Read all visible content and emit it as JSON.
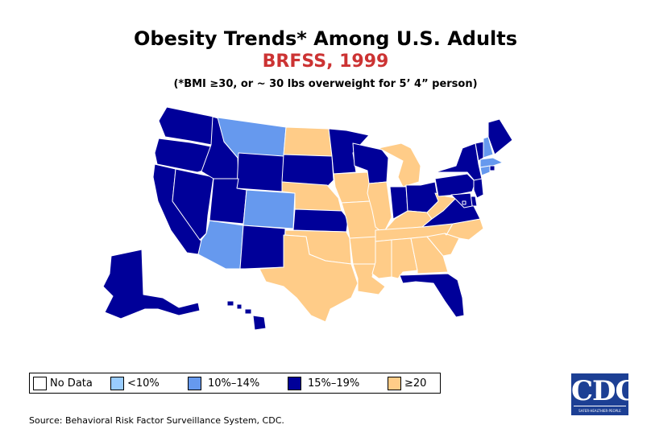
{
  "title": "Obesity Trends* Among U.S. Adults",
  "subtitle": "BRFSS, 1999",
  "note": "(*BMI ≥30, or ~ 30 lbs overweight for 5’ 4” person)",
  "colors": {
    "title": "#000000",
    "subtitle": "#cc3333",
    "no_data": "#ffffff",
    "lt10": "#99ccff",
    "b10_14": "#6699ee",
    "b15_19": "#000099",
    "ge20": "#ffcc88",
    "border": "#ffffff"
  },
  "legend": [
    {
      "label": "No Data",
      "category": "no_data"
    },
    {
      "label": "<10%",
      "category": "lt10"
    },
    {
      "label": "10%–14%",
      "category": "b10_14"
    },
    {
      "label": "15%–19%",
      "category": "b15_19"
    },
    {
      "label": "≥20",
      "category": "ge20"
    }
  ],
  "states": {
    "WA": "b15_19",
    "OR": "b15_19",
    "CA": "b15_19",
    "NV": "b15_19",
    "ID": "b15_19",
    "MT": "b10_14",
    "WY": "b15_19",
    "UT": "b15_19",
    "AZ": "b10_14",
    "CO": "b10_14",
    "NM": "b15_19",
    "ND": "ge20",
    "SD": "b15_19",
    "NE": "ge20",
    "KS": "b15_19",
    "OK": "ge20",
    "TX": "ge20",
    "MN": "b15_19",
    "IA": "ge20",
    "MO": "ge20",
    "AR": "ge20",
    "LA": "ge20",
    "WI": "b15_19",
    "IL": "ge20",
    "MI": "ge20",
    "IN": "b15_19",
    "OH": "b15_19",
    "KY": "ge20",
    "TN": "ge20",
    "MS": "ge20",
    "AL": "ge20",
    "GA": "ge20",
    "FL": "b15_19",
    "SC": "ge20",
    "NC": "ge20",
    "VA": "b15_19",
    "WV": "ge20",
    "PA": "b15_19",
    "NY": "b15_19",
    "VT": "b15_19",
    "NH": "b10_14",
    "ME": "b15_19",
    "MA": "b10_14",
    "RI": "b15_19",
    "CT": "b10_14",
    "NJ": "b15_19",
    "DE": "b15_19",
    "MD": "b15_19",
    "DC": "b15_19",
    "AK": "b15_19",
    "HI": "b15_19"
  },
  "source": "Source: Behavioral Risk Factor Surveillance System, CDC.",
  "logo": {
    "letters": "CDC",
    "tagline": "SAFER·HEALTHIER·PEOPLE"
  }
}
